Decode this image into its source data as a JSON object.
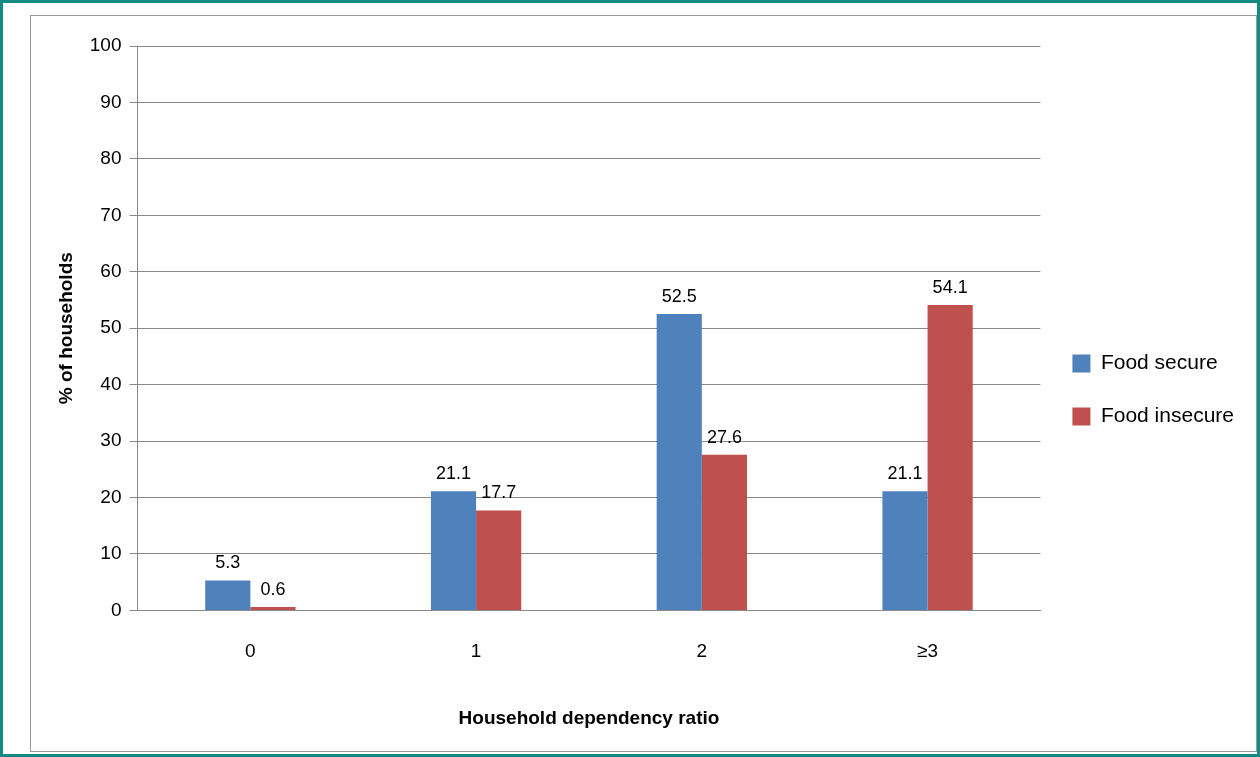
{
  "chart_data": {
    "type": "bar",
    "xlabel": "Household dependency ratio",
    "ylabel": "% of households",
    "categories": [
      "0",
      "1",
      "2",
      "≥3"
    ],
    "series": [
      {
        "name": "Food secure",
        "color": "#4f81bd",
        "values": [
          5.3,
          21.1,
          52.5,
          21.1
        ]
      },
      {
        "name": "Food insecure",
        "color": "#c0504d",
        "values": [
          0.6,
          17.7,
          27.6,
          54.1
        ]
      }
    ],
    "ylim": [
      0,
      100
    ],
    "yticks": [
      0,
      10,
      20,
      30,
      40,
      50,
      60,
      70,
      80,
      90,
      100
    ],
    "grid": "y",
    "legend": "right",
    "data_labels": true
  }
}
